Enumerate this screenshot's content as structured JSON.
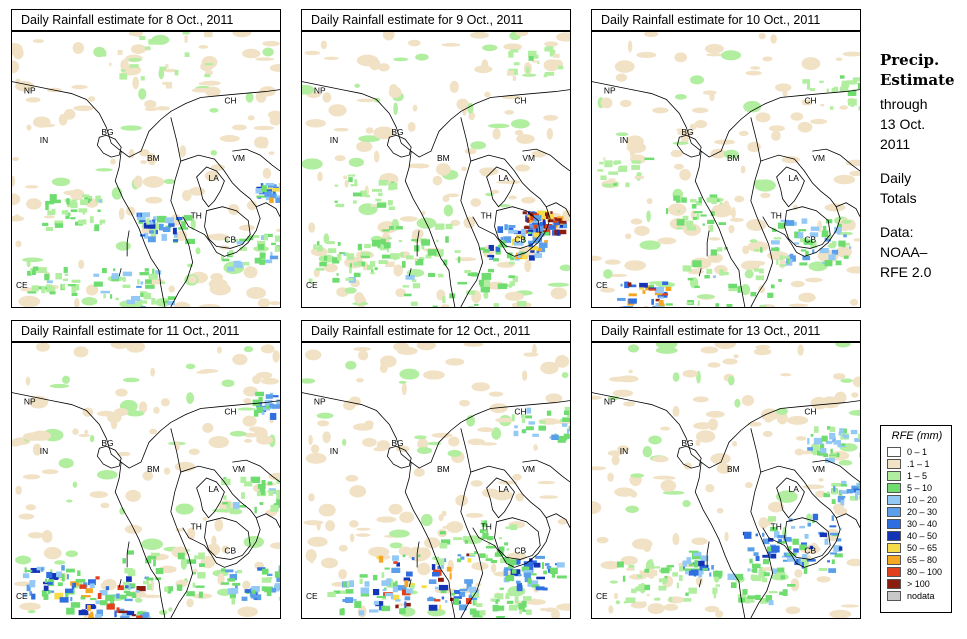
{
  "panels": [
    {
      "title": "Daily Rainfall estimate for  8 Oct., 2011"
    },
    {
      "title": "Daily Rainfall estimate for  9 Oct., 2011"
    },
    {
      "title": "Daily Rainfall estimate for  10 Oct., 2011"
    },
    {
      "title": "Daily Rainfall estimate for  11 Oct., 2011"
    },
    {
      "title": "Daily Rainfall estimate for  12 Oct., 2011"
    },
    {
      "title": "Daily Rainfall estimate for  13 Oct., 2011"
    }
  ],
  "map_labels": {
    "np": "NP",
    "ch": "CH",
    "bg": "BG",
    "in": "IN",
    "bm": "BM",
    "vm": "VM",
    "la": "LA",
    "th": "TH",
    "cb": "CB",
    "ce": "CE"
  },
  "side": {
    "title_line1": "Precip.",
    "title_line2": "Estimate",
    "through": "through",
    "date_line1": "13 Oct.",
    "date_line2": "2011",
    "daily": "Daily",
    "totals": "Totals",
    "data_line1": "Data:",
    "data_line2": "NOAA–",
    "data_line3": "RFE 2.0"
  },
  "legend": {
    "title": "RFE (mm)",
    "items": [
      {
        "label": "0 – 1",
        "color": "#ffffff"
      },
      {
        "label": ".1 – 1",
        "color": "#f1e2c6"
      },
      {
        "label": "1 – 5",
        "color": "#b2eea0"
      },
      {
        "label": "5 – 10",
        "color": "#6fdc6f"
      },
      {
        "label": "10 – 20",
        "color": "#93c9f4"
      },
      {
        "label": "20 – 30",
        "color": "#5b9fea"
      },
      {
        "label": "30 – 40",
        "color": "#2f6ee0"
      },
      {
        "label": "40 – 50",
        "color": "#1434b8"
      },
      {
        "label": "50 – 65",
        "color": "#f7dc4a"
      },
      {
        "label": "65 – 80",
        "color": "#f5a623"
      },
      {
        "label": "80 – 100",
        "color": "#e0401c"
      },
      {
        "label": "> 100",
        "color": "#8c1c10"
      },
      {
        "label": "nodata",
        "color": "#c8c8c8"
      }
    ]
  }
}
